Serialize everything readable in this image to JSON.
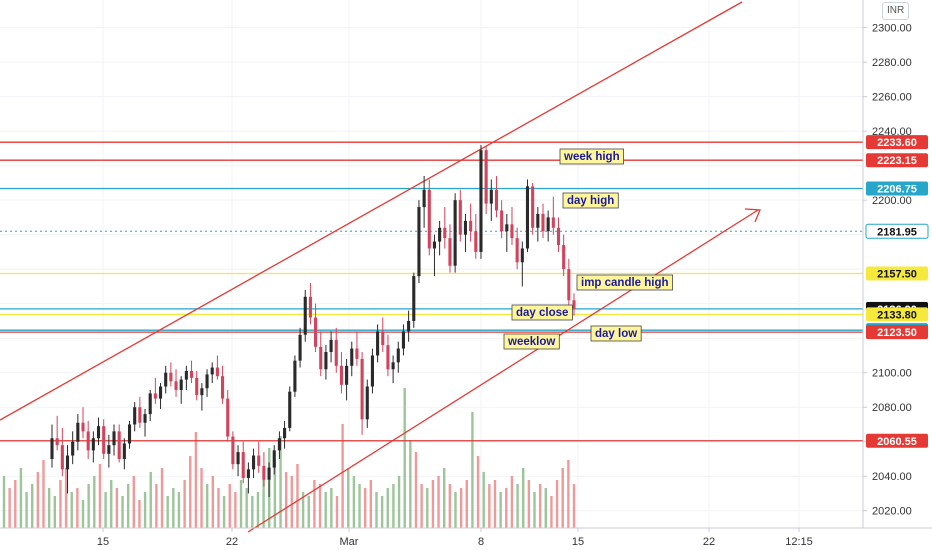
{
  "currency": "INR",
  "colors": {
    "up": "#2a2a2a",
    "down": "#d4435c",
    "red_line": "#e53935",
    "cyan_line": "#26a6c8",
    "yellow_line": "#f5ea3c",
    "annotation_bg": "#fff59a",
    "vol_up": "#9cc59a",
    "vol_down": "#ef9a9a",
    "last_price": "#111111"
  },
  "chart_data": {
    "type": "candlestick",
    "y_range": [
      2010,
      2316
    ],
    "y_ticks": [
      2020,
      2040,
      2060,
      2080,
      2100,
      2120,
      2140,
      2160,
      2180,
      2200,
      2220,
      2240,
      2260,
      2280,
      2300
    ],
    "y_tick_labels": [
      "2020.00",
      "2040.00",
      "2060.00",
      "2080.00",
      "2100.00",
      "",
      "",
      "",
      "",
      "2200.00",
      "",
      "2240.00",
      "2260.00",
      "2280.00",
      "2300.00"
    ],
    "x_ticks": [
      "15",
      "22",
      "Mar",
      "8",
      "15",
      "22",
      "12:15"
    ],
    "price_levels": [
      {
        "value": 2233.6,
        "label": "2233.60",
        "kind": "red"
      },
      {
        "value": 2223.15,
        "label": "2223.15",
        "kind": "red"
      },
      {
        "value": 2206.75,
        "label": "2206.75",
        "kind": "cyan"
      },
      {
        "value": 2181.95,
        "label": "2181.95",
        "kind": "cyan-dotted"
      },
      {
        "value": 2157.5,
        "label": "2157.50",
        "kind": "yellow"
      },
      {
        "value": 2137.0,
        "label": "2137.00",
        "kind": "cyan"
      },
      {
        "value": 2136.9,
        "label": "2136.90",
        "kind": "last"
      },
      {
        "value": 2133.8,
        "label": "2133.80",
        "kind": "yellow"
      },
      {
        "value": 2124.65,
        "label": "2124.65",
        "kind": "cyan"
      },
      {
        "value": 2123.5,
        "label": "2123.50",
        "kind": "red"
      },
      {
        "value": 2060.55,
        "label": "2060.55",
        "kind": "red"
      }
    ],
    "annotations": [
      "week high",
      "day high",
      "imp candle high",
      "day close",
      "day low",
      "weeklow"
    ],
    "candles": [
      [
        2050,
        2070,
        2045,
        2062
      ],
      [
        2062,
        2075,
        2055,
        2058
      ],
      [
        2058,
        2068,
        2040,
        2044
      ],
      [
        2044,
        2058,
        2030,
        2052
      ],
      [
        2052,
        2066,
        2047,
        2060
      ],
      [
        2060,
        2076,
        2055,
        2071
      ],
      [
        2071,
        2080,
        2062,
        2066
      ],
      [
        2066,
        2072,
        2050,
        2055
      ],
      [
        2055,
        2066,
        2048,
        2062
      ],
      [
        2062,
        2074,
        2058,
        2069
      ],
      [
        2069,
        2073,
        2050,
        2053
      ],
      [
        2053,
        2064,
        2045,
        2058
      ],
      [
        2058,
        2070,
        2052,
        2066
      ],
      [
        2066,
        2070,
        2048,
        2050
      ],
      [
        2050,
        2062,
        2044,
        2059
      ],
      [
        2059,
        2072,
        2056,
        2070
      ],
      [
        2070,
        2083,
        2066,
        2080
      ],
      [
        2080,
        2086,
        2068,
        2071
      ],
      [
        2071,
        2079,
        2063,
        2076
      ],
      [
        2076,
        2090,
        2072,
        2088
      ],
      [
        2088,
        2097,
        2082,
        2085
      ],
      [
        2085,
        2094,
        2079,
        2092
      ],
      [
        2092,
        2104,
        2088,
        2100
      ],
      [
        2100,
        2106,
        2092,
        2095
      ],
      [
        2095,
        2102,
        2086,
        2090
      ],
      [
        2090,
        2098,
        2082,
        2096
      ],
      [
        2096,
        2104,
        2090,
        2101
      ],
      [
        2101,
        2107,
        2094,
        2097
      ],
      [
        2097,
        2101,
        2084,
        2087
      ],
      [
        2087,
        2094,
        2078,
        2091
      ],
      [
        2091,
        2102,
        2086,
        2099
      ],
      [
        2099,
        2106,
        2094,
        2103
      ],
      [
        2103,
        2110,
        2096,
        2098
      ],
      [
        2098,
        2104,
        2082,
        2085
      ],
      [
        2085,
        2090,
        2060,
        2063
      ],
      [
        2063,
        2066,
        2044,
        2047
      ],
      [
        2047,
        2058,
        2040,
        2054
      ],
      [
        2054,
        2060,
        2036,
        2039
      ],
      [
        2039,
        2048,
        2030,
        2044
      ],
      [
        2044,
        2056,
        2039,
        2052
      ],
      [
        2052,
        2060,
        2042,
        2046
      ],
      [
        2046,
        2054,
        2034,
        2038
      ],
      [
        2038,
        2048,
        2028,
        2045
      ],
      [
        2045,
        2058,
        2041,
        2055
      ],
      [
        2055,
        2066,
        2050,
        2062
      ],
      [
        2062,
        2072,
        2056,
        2068
      ],
      [
        2068,
        2092,
        2066,
        2089
      ],
      [
        2089,
        2110,
        2086,
        2107
      ],
      [
        2107,
        2126,
        2103,
        2122
      ],
      [
        2122,
        2148,
        2118,
        2144
      ],
      [
        2144,
        2152,
        2128,
        2132
      ],
      [
        2132,
        2140,
        2112,
        2115
      ],
      [
        2115,
        2124,
        2098,
        2102
      ],
      [
        2102,
        2116,
        2096,
        2112
      ],
      [
        2112,
        2124,
        2106,
        2119
      ],
      [
        2119,
        2126,
        2100,
        2104
      ],
      [
        2104,
        2112,
        2088,
        2093
      ],
      [
        2093,
        2108,
        2084,
        2104
      ],
      [
        2104,
        2118,
        2098,
        2114
      ],
      [
        2114,
        2124,
        2104,
        2108
      ],
      [
        2108,
        2112,
        2064,
        2073
      ],
      [
        2073,
        2096,
        2068,
        2092
      ],
      [
        2092,
        2114,
        2088,
        2110
      ],
      [
        2110,
        2128,
        2106,
        2124
      ],
      [
        2124,
        2132,
        2112,
        2116
      ],
      [
        2116,
        2122,
        2098,
        2102
      ],
      [
        2102,
        2110,
        2094,
        2106
      ],
      [
        2106,
        2118,
        2100,
        2114
      ],
      [
        2114,
        2128,
        2110,
        2124
      ],
      [
        2124,
        2136,
        2118,
        2130
      ],
      [
        2130,
        2158,
        2126,
        2156
      ],
      [
        2156,
        2200,
        2152,
        2196
      ],
      [
        2196,
        2214,
        2184,
        2206
      ],
      [
        2206,
        2212,
        2168,
        2172
      ],
      [
        2172,
        2180,
        2156,
        2176
      ],
      [
        2176,
        2188,
        2168,
        2184
      ],
      [
        2184,
        2196,
        2172,
        2178
      ],
      [
        2178,
        2186,
        2158,
        2162
      ],
      [
        2162,
        2204,
        2158,
        2200
      ],
      [
        2200,
        2206,
        2176,
        2180
      ],
      [
        2180,
        2192,
        2170,
        2188
      ],
      [
        2188,
        2198,
        2176,
        2182
      ],
      [
        2182,
        2192,
        2166,
        2170
      ],
      [
        2170,
        2232,
        2166,
        2229
      ],
      [
        2229,
        2231,
        2192,
        2198
      ],
      [
        2198,
        2212,
        2188,
        2206
      ],
      [
        2206,
        2214,
        2190,
        2194
      ],
      [
        2194,
        2200,
        2178,
        2182
      ],
      [
        2182,
        2192,
        2170,
        2186
      ],
      [
        2186,
        2196,
        2174,
        2178
      ],
      [
        2178,
        2184,
        2160,
        2164
      ],
      [
        2164,
        2176,
        2150,
        2172
      ],
      [
        2172,
        2212,
        2170,
        2208
      ],
      [
        2208,
        2210,
        2180,
        2184
      ],
      [
        2184,
        2196,
        2176,
        2192
      ],
      [
        2192,
        2198,
        2178,
        2182
      ],
      [
        2182,
        2194,
        2176,
        2190
      ],
      [
        2190,
        2202,
        2180,
        2184
      ],
      [
        2184,
        2190,
        2170,
        2174
      ],
      [
        2174,
        2180,
        2156,
        2160
      ],
      [
        2160,
        2166,
        2138,
        2142
      ],
      [
        2142,
        2146,
        2133,
        2137
      ]
    ],
    "volumes": [
      [
        26,
        1
      ],
      [
        20,
        0
      ],
      [
        24,
        0
      ],
      [
        30,
        1
      ],
      [
        18,
        1
      ],
      [
        22,
        1
      ],
      [
        28,
        0
      ],
      [
        34,
        0
      ],
      [
        20,
        1
      ],
      [
        16,
        1
      ],
      [
        24,
        0
      ],
      [
        30,
        0
      ],
      [
        18,
        1
      ],
      [
        20,
        0
      ],
      [
        14,
        1
      ],
      [
        22,
        1
      ],
      [
        26,
        1
      ],
      [
        32,
        0
      ],
      [
        18,
        1
      ],
      [
        24,
        1
      ],
      [
        20,
        0
      ],
      [
        16,
        1
      ],
      [
        22,
        1
      ],
      [
        26,
        0
      ],
      [
        14,
        0
      ],
      [
        18,
        1
      ],
      [
        28,
        1
      ],
      [
        22,
        0
      ],
      [
        30,
        0
      ],
      [
        16,
        1
      ],
      [
        20,
        1
      ],
      [
        18,
        1
      ],
      [
        24,
        0
      ],
      [
        36,
        0
      ],
      [
        48,
        0
      ],
      [
        30,
        0
      ],
      [
        22,
        1
      ],
      [
        26,
        0
      ],
      [
        20,
        0
      ],
      [
        16,
        1
      ],
      [
        22,
        0
      ],
      [
        18,
        0
      ],
      [
        24,
        1
      ],
      [
        20,
        1
      ],
      [
        16,
        1
      ],
      [
        18,
        1
      ],
      [
        30,
        1
      ],
      [
        40,
        1
      ],
      [
        34,
        1
      ],
      [
        46,
        1
      ],
      [
        28,
        0
      ],
      [
        26,
        0
      ],
      [
        32,
        0
      ],
      [
        18,
        1
      ],
      [
        16,
        1
      ],
      [
        24,
        0
      ],
      [
        22,
        0
      ],
      [
        18,
        1
      ],
      [
        20,
        1
      ],
      [
        16,
        0
      ],
      [
        52,
        0
      ],
      [
        30,
        1
      ],
      [
        26,
        1
      ],
      [
        22,
        1
      ],
      [
        20,
        0
      ],
      [
        24,
        0
      ],
      [
        18,
        1
      ],
      [
        16,
        1
      ],
      [
        20,
        1
      ],
      [
        22,
        1
      ],
      [
        26,
        1
      ],
      [
        70,
        1
      ],
      [
        44,
        1
      ],
      [
        38,
        0
      ],
      [
        22,
        0
      ],
      [
        20,
        1
      ],
      [
        24,
        0
      ],
      [
        26,
        0
      ],
      [
        30,
        1
      ],
      [
        22,
        0
      ],
      [
        18,
        1
      ],
      [
        20,
        0
      ],
      [
        24,
        0
      ],
      [
        58,
        1
      ],
      [
        36,
        0
      ],
      [
        28,
        1
      ],
      [
        22,
        0
      ],
      [
        24,
        0
      ],
      [
        18,
        1
      ],
      [
        20,
        0
      ],
      [
        26,
        0
      ],
      [
        22,
        1
      ],
      [
        30,
        1
      ],
      [
        24,
        0
      ],
      [
        18,
        1
      ],
      [
        22,
        0
      ],
      [
        20,
        1
      ],
      [
        16,
        0
      ],
      [
        24,
        0
      ],
      [
        30,
        0
      ],
      [
        34,
        0
      ],
      [
        22,
        0
      ]
    ]
  }
}
